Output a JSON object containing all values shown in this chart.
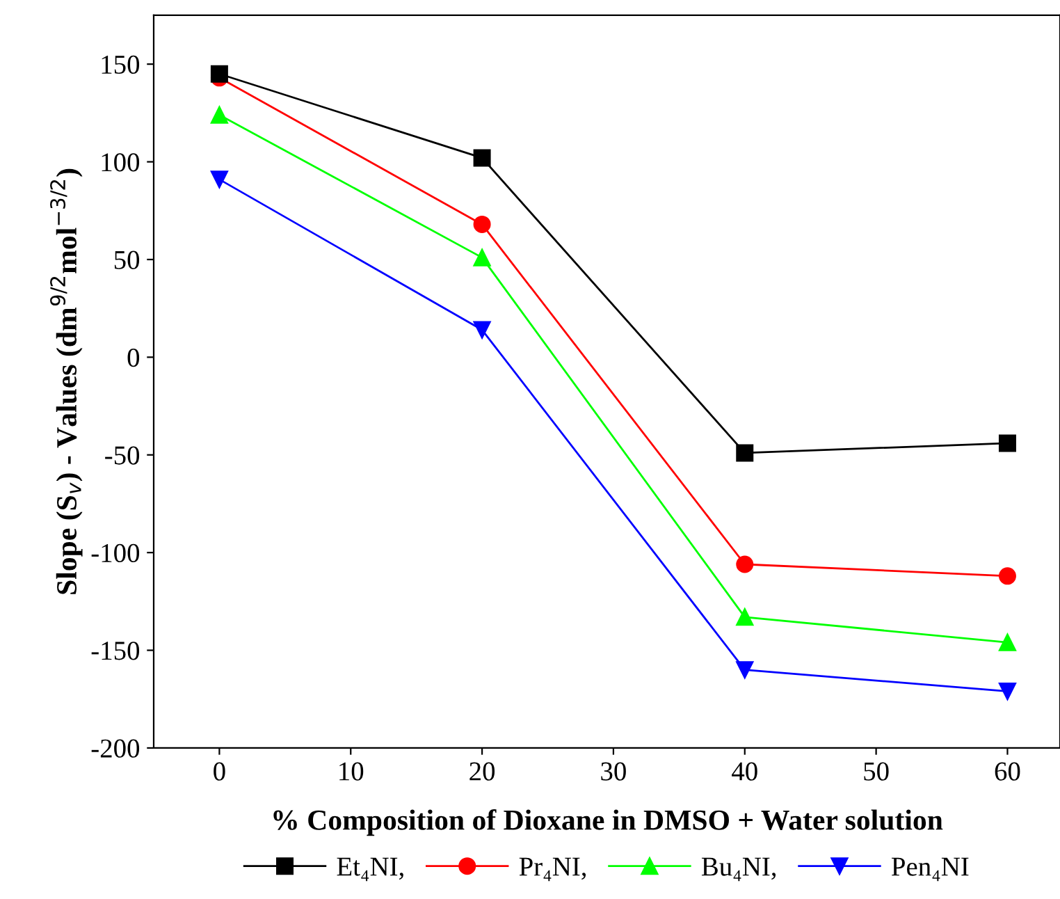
{
  "chart_data": {
    "type": "line",
    "xlabel": "% Composition of Dioxane in DMSO + Water solution",
    "ylabel": "Slope (S$_{v}$) - Values (dm$^{9/2}$mol$^{−3/2}$)",
    "x": [
      0,
      20,
      40,
      60
    ],
    "series": [
      {
        "name": "Et₄NI,",
        "color": "#000000",
        "marker": "square",
        "values": [
          145,
          102,
          -49,
          -44
        ]
      },
      {
        "name": "Pr₄NI,",
        "color": "#ff0000",
        "marker": "circle",
        "values": [
          143,
          68,
          -106,
          -112
        ]
      },
      {
        "name": "Bu₄NI,",
        "color": "#00ff00",
        "marker": "triangle",
        "values": [
          124,
          51,
          -133,
          -146
        ]
      },
      {
        "name": "Pen₄NI",
        "color": "#0000ff",
        "marker": "triangle_down",
        "values": [
          91,
          14,
          -160,
          -171
        ]
      }
    ],
    "xlim": [
      -5,
      64
    ],
    "xticks": [
      0,
      10,
      20,
      30,
      40,
      50,
      60
    ],
    "ylim": [
      -200,
      175
    ],
    "yticks": [
      -200,
      -150,
      -100,
      -50,
      0,
      50,
      100,
      150
    ],
    "grid": false,
    "legend": "bottom",
    "line_style": "solid"
  }
}
